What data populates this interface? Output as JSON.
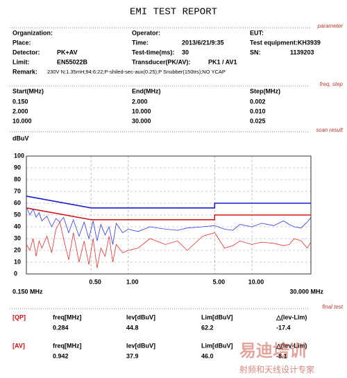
{
  "header": {
    "title": "EMI TEST REPORT"
  },
  "parameter": {
    "section": "parameter",
    "fields": [
      {
        "label": "Organization:"
      },
      {
        "label": "Operator:"
      },
      {
        "label": "EUT:"
      },
      {
        "label": "Place:"
      },
      {
        "label": "Time:",
        "value": "2013/6/21/9:35"
      },
      {
        "label": "Test equipment:KH3939"
      },
      {
        "label": "Detector:",
        "value": "PK+AV"
      },
      {
        "label": "Test-time(ms):",
        "value": "30"
      },
      {
        "label": "SN:",
        "value": "1139203"
      },
      {
        "label": "Limit:",
        "value": "EN55022B"
      },
      {
        "label": "Transducer(PK/AV):",
        "value": "PK1 / AV1"
      }
    ],
    "remark": {
      "label": "Remark:",
      "value": "230V N;1.35mH;94:6:22;P-shiled-sec-aux(0.25);P Snubber(150trs);NO YCAP"
    }
  },
  "freq_step": {
    "section": "freq, step",
    "header": [
      "Start(MHz)",
      "End(MHz)",
      "Step(MHz)"
    ],
    "rows": [
      [
        "0.150",
        "2.000",
        "0.002"
      ],
      [
        "2.000",
        "10.000",
        "0.010"
      ],
      [
        "10.000",
        "30.000",
        "0.025"
      ]
    ]
  },
  "scan_result": {
    "section": "scan result"
  },
  "chart_data": {
    "type": "line",
    "y_label": "dBuV",
    "log_x": true,
    "grid": true,
    "xlim": [
      0.15,
      30
    ],
    "xlim_labels": [
      "0.150 MHz",
      "30.000 MHz"
    ],
    "xticks": [
      {
        "value": 0.5,
        "label": "0.50"
      },
      {
        "value": 1,
        "label": "1.00"
      },
      {
        "value": 5,
        "label": "5.00"
      },
      {
        "value": 10,
        "label": "10.00"
      }
    ],
    "ylim": [
      0,
      100
    ],
    "yticks": [
      0,
      10,
      20,
      30,
      40,
      50,
      60,
      70,
      80,
      90,
      100
    ],
    "series": [
      {
        "color": "#1a1ad0",
        "width": 1.6,
        "x": [
          0.15,
          0.5,
          5,
          5,
          30
        ],
        "values": [
          66,
          56,
          56,
          60,
          60
        ]
      },
      {
        "color": "#d01a1a",
        "width": 1.6,
        "x": [
          0.15,
          0.5,
          5,
          5,
          30
        ],
        "values": [
          56,
          46,
          46,
          50,
          50
        ]
      },
      {
        "color": "#2a3ae8",
        "width": 0.8,
        "x": [
          0.15,
          0.16,
          0.17,
          0.18,
          0.19,
          0.2,
          0.22,
          0.24,
          0.26,
          0.28,
          0.3,
          0.33,
          0.36,
          0.4,
          0.44,
          0.48,
          0.52,
          0.56,
          0.6,
          0.65,
          0.7,
          0.75,
          0.8,
          0.9,
          1.0,
          1.2,
          1.5,
          2,
          2.5,
          3,
          4,
          5,
          6,
          7,
          8,
          10,
          12,
          15,
          18,
          20,
          22,
          25,
          28,
          30
        ],
        "values": [
          57,
          50,
          55,
          48,
          52,
          45,
          49,
          40,
          47,
          44,
          48,
          35,
          46,
          32,
          44,
          30,
          45,
          28,
          42,
          33,
          40,
          25,
          43,
          35,
          38,
          36,
          40,
          38,
          37,
          39,
          40,
          41,
          38,
          37,
          42,
          40,
          43,
          41,
          45,
          42,
          40,
          39,
          44,
          48
        ]
      },
      {
        "color": "#e83030",
        "width": 0.8,
        "x": [
          0.15,
          0.16,
          0.17,
          0.18,
          0.19,
          0.2,
          0.22,
          0.24,
          0.26,
          0.28,
          0.3,
          0.33,
          0.36,
          0.4,
          0.44,
          0.48,
          0.52,
          0.56,
          0.6,
          0.65,
          0.7,
          0.75,
          0.8,
          0.9,
          1.0,
          1.2,
          1.5,
          2,
          2.5,
          3,
          4,
          5,
          6,
          7,
          8,
          10,
          12,
          15,
          18,
          20,
          22,
          25,
          28,
          30
        ],
        "values": [
          25,
          20,
          30,
          15,
          28,
          22,
          32,
          18,
          38,
          44,
          30,
          12,
          35,
          10,
          28,
          8,
          30,
          5,
          22,
          15,
          32,
          10,
          25,
          18,
          20,
          22,
          30,
          25,
          28,
          20,
          32,
          35,
          22,
          24,
          28,
          25,
          27,
          26,
          24,
          25,
          30,
          28,
          22,
          27
        ]
      }
    ]
  },
  "final_test": {
    "section": "final test",
    "rows": [
      {
        "tag": "[QP]",
        "labels": [
          "freq[MHz]",
          "lev[dBuV]",
          "Lim[dBuV]",
          "△(lev-Lim)"
        ],
        "values": [
          "0.284",
          "44.8",
          "62.2",
          "-17.4"
        ]
      },
      {
        "tag": "[AV]",
        "labels": [
          "freq[MHz]",
          "lev[dBuV]",
          "Lim[dBuV]",
          "△(lev-Lim)"
        ],
        "values": [
          "0.942",
          "37.9",
          "46.0",
          "-8.1"
        ]
      }
    ]
  },
  "watermark": {
    "brand": "易迪培训",
    "slogan": "射频和天线设计专家"
  }
}
